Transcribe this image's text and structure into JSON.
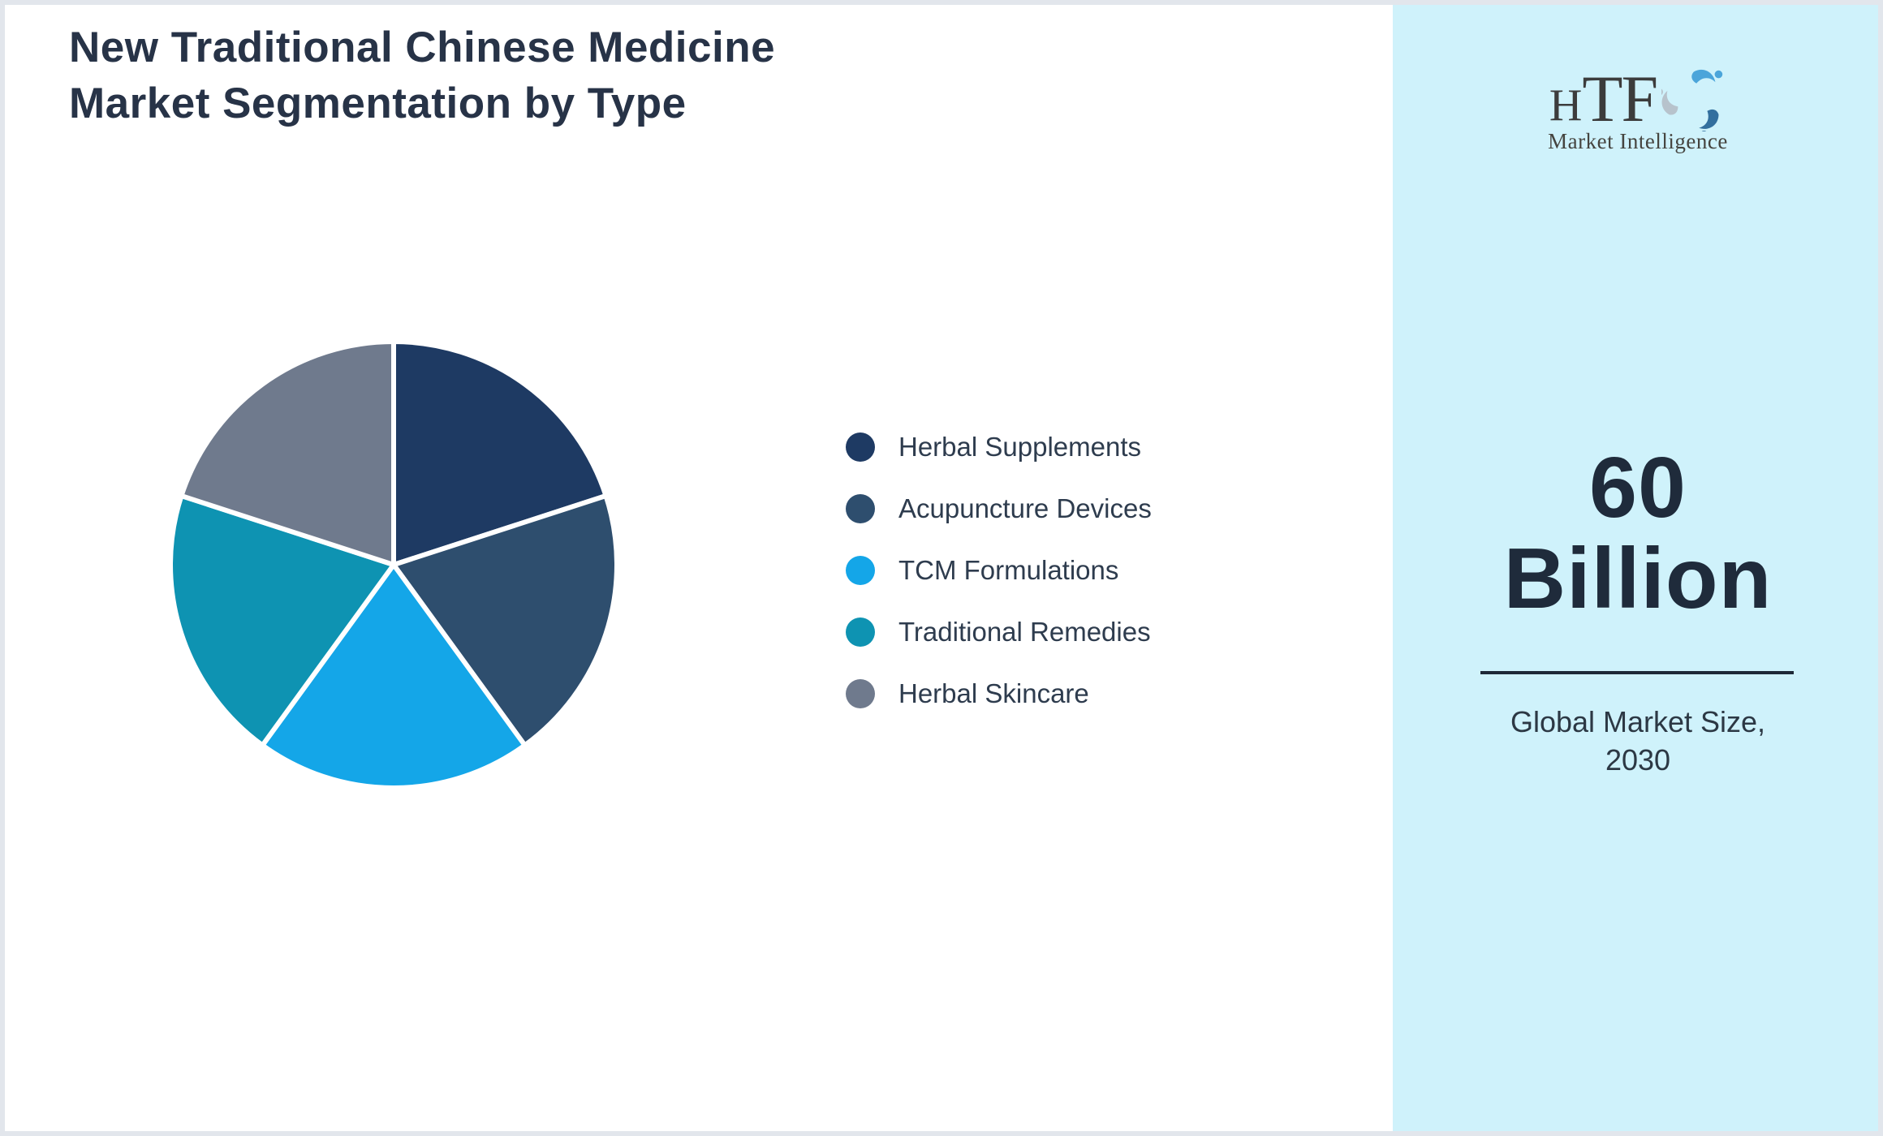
{
  "page": {
    "background_color": "#ffffff",
    "frame_border_color": "#e2e6ec"
  },
  "header": {
    "title": "New Traditional Chinese Medicine Market Segmentation by Type",
    "title_color": "#273347"
  },
  "chart_data": {
    "type": "pie",
    "title": "New Traditional Chinese Medicine Market Segmentation by Type",
    "direction": "clockwise",
    "start_angle_deg": 0,
    "legend_position": "right",
    "values_unit": "percent (equal shares, estimated from slice angles; no data labels shown)",
    "segments": [
      {
        "label": "Herbal Supplements",
        "value": 20,
        "color": "#1e3a63"
      },
      {
        "label": "Acupuncture Devices",
        "value": 20,
        "color": "#2e4e6e"
      },
      {
        "label": "TCM Formulations",
        "value": 20,
        "color": "#14a6e8"
      },
      {
        "label": "Traditional Remedies",
        "value": 20,
        "color": "#0e93b2"
      },
      {
        "label": "Herbal Skincare",
        "value": 20,
        "color": "#6f7a8d"
      }
    ],
    "slice_gap_color": "#ffffff"
  },
  "brand": {
    "mark_parts": [
      "H",
      "TF"
    ],
    "tagline": "Market Intelligence",
    "swirl_colors": [
      "#4ba5da",
      "#336f9e",
      "#b7c3cc"
    ]
  },
  "panel": {
    "background_color": "#cff2fb",
    "market_size_value": "60",
    "market_size_unit": "Billion",
    "caption_lines": [
      "Global Market Size,",
      "2030"
    ],
    "text_color": "#1f2b3b",
    "divider_color": "#1d2836"
  }
}
